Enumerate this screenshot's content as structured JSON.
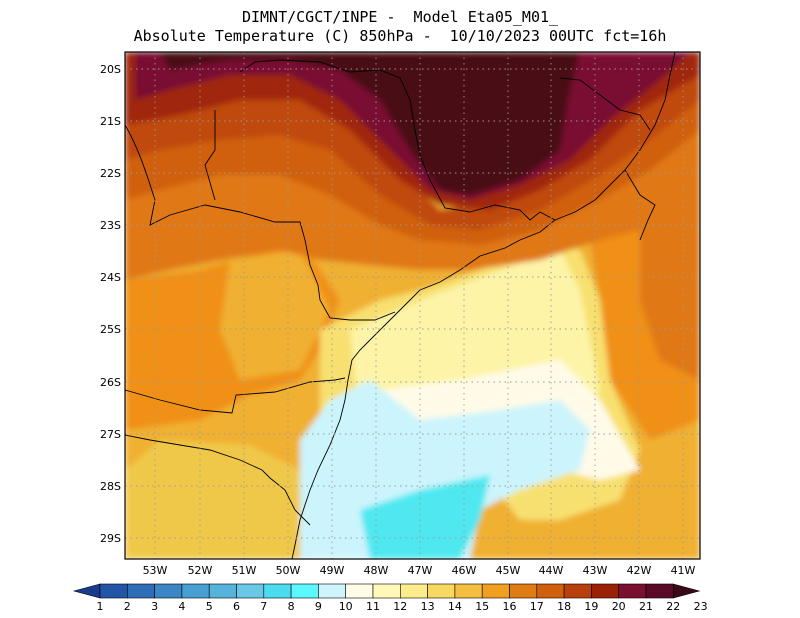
{
  "title": {
    "line1": "DIMNT/CGCT/INPE -  Model Eta05_M01_",
    "line2": "Absolute Temperature (C) 850hPa -  10/10/2023 00UTC fct=16h"
  },
  "map": {
    "lat_labels": [
      "20S",
      "21S",
      "22S",
      "23S",
      "24S",
      "25S",
      "26S",
      "27S",
      "28S",
      "29S"
    ],
    "lon_labels": [
      "53W",
      "52W",
      "51W",
      "50W",
      "49W",
      "48W",
      "47W",
      "46W",
      "45W",
      "44W",
      "43W",
      "42W",
      "41W"
    ],
    "colors": {
      "warm_max": "#4a1016",
      "warm_22": "#7a1030",
      "warm_21": "#a02808",
      "warm_20": "#c04810",
      "warm_19": "#d06010",
      "warm_18": "#e07818",
      "warm_17": "#f09018",
      "warm_16": "#f0b030",
      "warm_15": "#f0c848",
      "warm_14": "#f8e070",
      "warm_13": "#fdf4a8",
      "warm_12": "#fffbe8",
      "cool_11": "#ccf4fc",
      "cool_10": "#50e8f0",
      "coast": "#000000",
      "grid": "#9a9a9a"
    }
  },
  "colorbar": {
    "labels": [
      "1",
      "2",
      "3",
      "4",
      "5",
      "6",
      "7",
      "8",
      "9",
      "10",
      "11",
      "12",
      "13",
      "14",
      "15",
      "16",
      "17",
      "18",
      "19",
      "20",
      "21",
      "22",
      "23"
    ],
    "colors": [
      "#1a3a8c",
      "#2255a8",
      "#2e6eb8",
      "#3c86c6",
      "#48a0d2",
      "#56b4dc",
      "#6ac8e6",
      "#4cdcf0",
      "#5cf8ff",
      "#cff5fc",
      "#fffbe6",
      "#fff8b8",
      "#fcec8c",
      "#f8d860",
      "#f4be40",
      "#f0a020",
      "#e07c14",
      "#d0600c",
      "#b8400a",
      "#9a2006",
      "#7a1030",
      "#5a0a26",
      "#3a0816"
    ]
  }
}
